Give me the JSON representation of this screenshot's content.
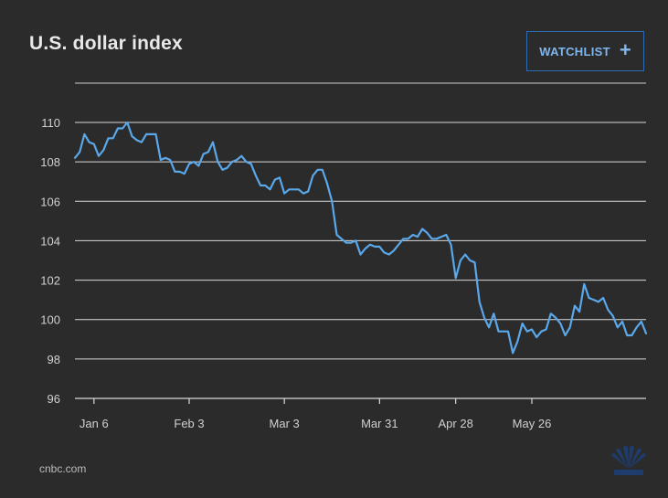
{
  "header": {
    "title": "U.S. dollar index",
    "watchlist_label": "WATCHLIST",
    "watchlist_icon": "plus-icon"
  },
  "footer": {
    "source": "cnbc.com",
    "logo_icon": "peacock-logo-icon"
  },
  "colors": {
    "background": "#2b2b2b",
    "line": "#5aa7ea",
    "grid": "#d9d9d9",
    "text": "#e8e8e8",
    "accent": "#2f6bb5"
  },
  "chart_data": {
    "type": "line",
    "title": "U.S. dollar index",
    "xlabel": "",
    "ylabel": "",
    "ylim": [
      96,
      110
    ],
    "yticks": [
      96,
      98,
      100,
      102,
      104,
      106,
      108,
      110
    ],
    "xtick_labels": [
      {
        "label": "Jan 6",
        "index": 4
      },
      {
        "label": "Feb 3",
        "index": 24
      },
      {
        "label": "Mar 3",
        "index": 44
      },
      {
        "label": "Mar 31",
        "index": 64
      },
      {
        "label": "Apr 28",
        "index": 80
      },
      {
        "label": "May 26",
        "index": 96
      }
    ],
    "grid": true,
    "series": [
      {
        "values": [
          108.2,
          108.5,
          109.4,
          109.0,
          108.9,
          108.3,
          108.6,
          109.2,
          109.2,
          109.7,
          109.7,
          110.0,
          109.3,
          109.1,
          109.0,
          109.4,
          109.4,
          109.4,
          108.1,
          108.2,
          108.1,
          107.5,
          107.5,
          107.4,
          107.9,
          108.0,
          107.8,
          108.4,
          108.5,
          109.0,
          108.0,
          107.6,
          107.7,
          108.0,
          108.1,
          108.3,
          108.0,
          107.9,
          107.3,
          106.8,
          106.8,
          106.6,
          107.1,
          107.2,
          106.4,
          106.6,
          106.6,
          106.6,
          106.4,
          106.5,
          107.3,
          107.6,
          107.6,
          106.9,
          106.0,
          104.3,
          104.1,
          103.9,
          103.9,
          104.0,
          103.3,
          103.6,
          103.8,
          103.7,
          103.7,
          103.4,
          103.3,
          103.5,
          103.8,
          104.1,
          104.1,
          104.3,
          104.2,
          104.6,
          104.4,
          104.1,
          104.1,
          104.2,
          104.3,
          103.8,
          102.1,
          103.0,
          103.3,
          103.0,
          102.9,
          100.9,
          100.1,
          99.6,
          100.3,
          99.4,
          99.4,
          99.4,
          98.3,
          98.9,
          99.8,
          99.4,
          99.5,
          99.1,
          99.4,
          99.5,
          100.3,
          100.1,
          99.8,
          99.2,
          99.6,
          100.7,
          100.4,
          101.8,
          101.1,
          101.0,
          100.9,
          101.1,
          100.5,
          100.2,
          99.6,
          99.9,
          99.2,
          99.2,
          99.6,
          99.9,
          99.3
        ]
      }
    ]
  }
}
